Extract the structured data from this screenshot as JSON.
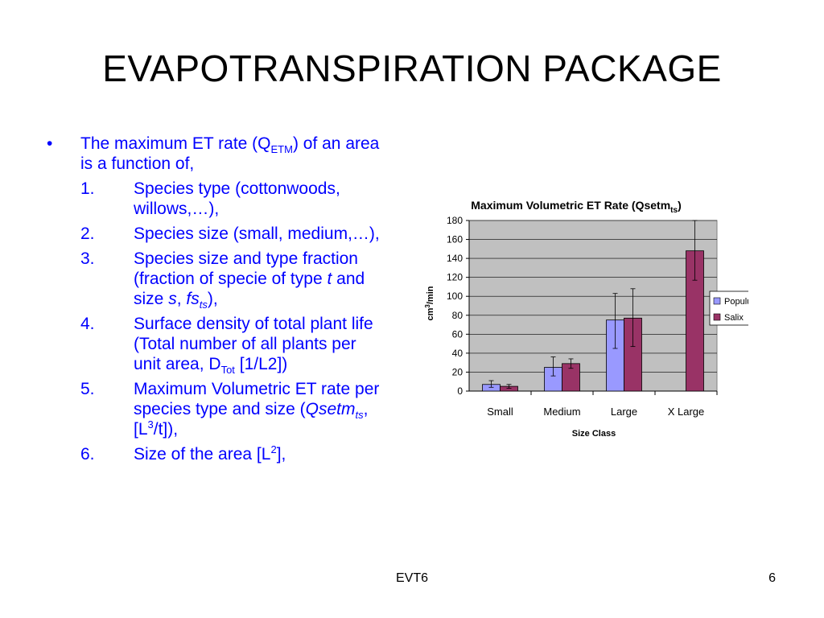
{
  "slide": {
    "title": "EVAPOTRANSPIRATION PACKAGE",
    "footer_center": "EVT6",
    "page_number": "6"
  },
  "content": {
    "bullet_mark": "•",
    "intro": {
      "part1": "The maximum ET rate (Q",
      "sub": "ETM",
      "part2": ") of an area is a function of,"
    },
    "items": [
      {
        "num": "1.",
        "text": "Species type (cottonwoods, willows,…),"
      },
      {
        "num": "2.",
        "text": "Species size (small, medium,…),"
      },
      {
        "num": "3.",
        "a": "Species size and type fraction (fraction of specie of type ",
        "t": "t",
        "b": " and size ",
        "s": "s",
        "c": ", ",
        "fs": "fs",
        "fs_sub": "ts",
        "d": "),"
      },
      {
        "num": "4.",
        "a": "Surface density of total plant life (Total  number of all plants per unit area, D",
        "sub": "Tot",
        "b": " [1/L2])"
      },
      {
        "num": "5.",
        "a": "Maximum Volumetric ET rate per species type and size (",
        "q": "Qsetm",
        "q_sub": "ts",
        "b": ", [L",
        "sup": "3",
        "c": "/t]),"
      },
      {
        "num": "6.",
        "a": "Size of the area [L",
        "sup": "2",
        "b": "],"
      }
    ]
  },
  "chart_data": {
    "type": "bar",
    "title": "Maximum Volumetric ET Rate (Qsetm",
    "title_sub": "ts",
    "title_end": ")",
    "categories": [
      "Small",
      "Medium",
      "Large",
      "X Large"
    ],
    "series": [
      {
        "name": "Populus",
        "color": "#9999ff",
        "values": [
          7,
          25,
          75,
          null
        ],
        "err_low": [
          4,
          16,
          45,
          null
        ],
        "err_high": [
          11,
          36,
          103,
          null
        ]
      },
      {
        "name": "Salix",
        "color": "#993366",
        "values": [
          5,
          29,
          77,
          148
        ],
        "err_low": [
          3,
          24,
          47,
          117
        ],
        "err_high": [
          7,
          34,
          108,
          180
        ]
      }
    ],
    "xlabel": "Size Class",
    "ylabel": "cm",
    "ylabel_sup": "3",
    "ylabel_end": "/min",
    "yticks": [
      0,
      20,
      40,
      60,
      80,
      100,
      120,
      140,
      160,
      180
    ],
    "ylim": [
      0,
      180
    ],
    "plot_bg": "#c0c0c0",
    "grid": true,
    "legend": "right"
  }
}
